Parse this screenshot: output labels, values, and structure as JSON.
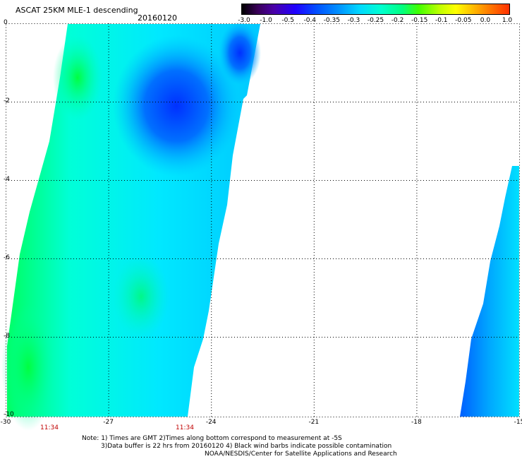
{
  "header": {
    "title": "ASCAT 25KM MLE-1 descending",
    "date": "20160120"
  },
  "colorbar": {
    "labels": [
      "-3.0",
      "-1.0",
      "-0.5",
      "-0.4",
      "-0.35",
      "-0.3",
      "-0.25",
      "-0.2",
      "-0.15",
      "-0.1",
      "-0.05",
      "0.0",
      "1.0"
    ]
  },
  "axes": {
    "x_ticks": [
      "-30",
      "-27",
      "-24",
      "-21",
      "-18",
      "-15"
    ],
    "y_ticks": [
      "0",
      "-2",
      "-4",
      "-6",
      "-8",
      "-10"
    ],
    "time_labels": [
      "11:34",
      "11:34"
    ]
  },
  "colors": {
    "swath_base": "#00ffff",
    "low_blue": "#0030ff",
    "mid_blue": "#0090ff",
    "green": "#00ff60"
  },
  "notes": {
    "line1": "Note: 1) Times are GMT 2)Times along bottom correspond to measurement at -5S",
    "line2": "3)Data buffer is 22 hrs from 20160120 4) Black wind barbs indicate possible contamination",
    "line3": "NOAA/NESDIS/Center for Satellite Applications and Research"
  }
}
